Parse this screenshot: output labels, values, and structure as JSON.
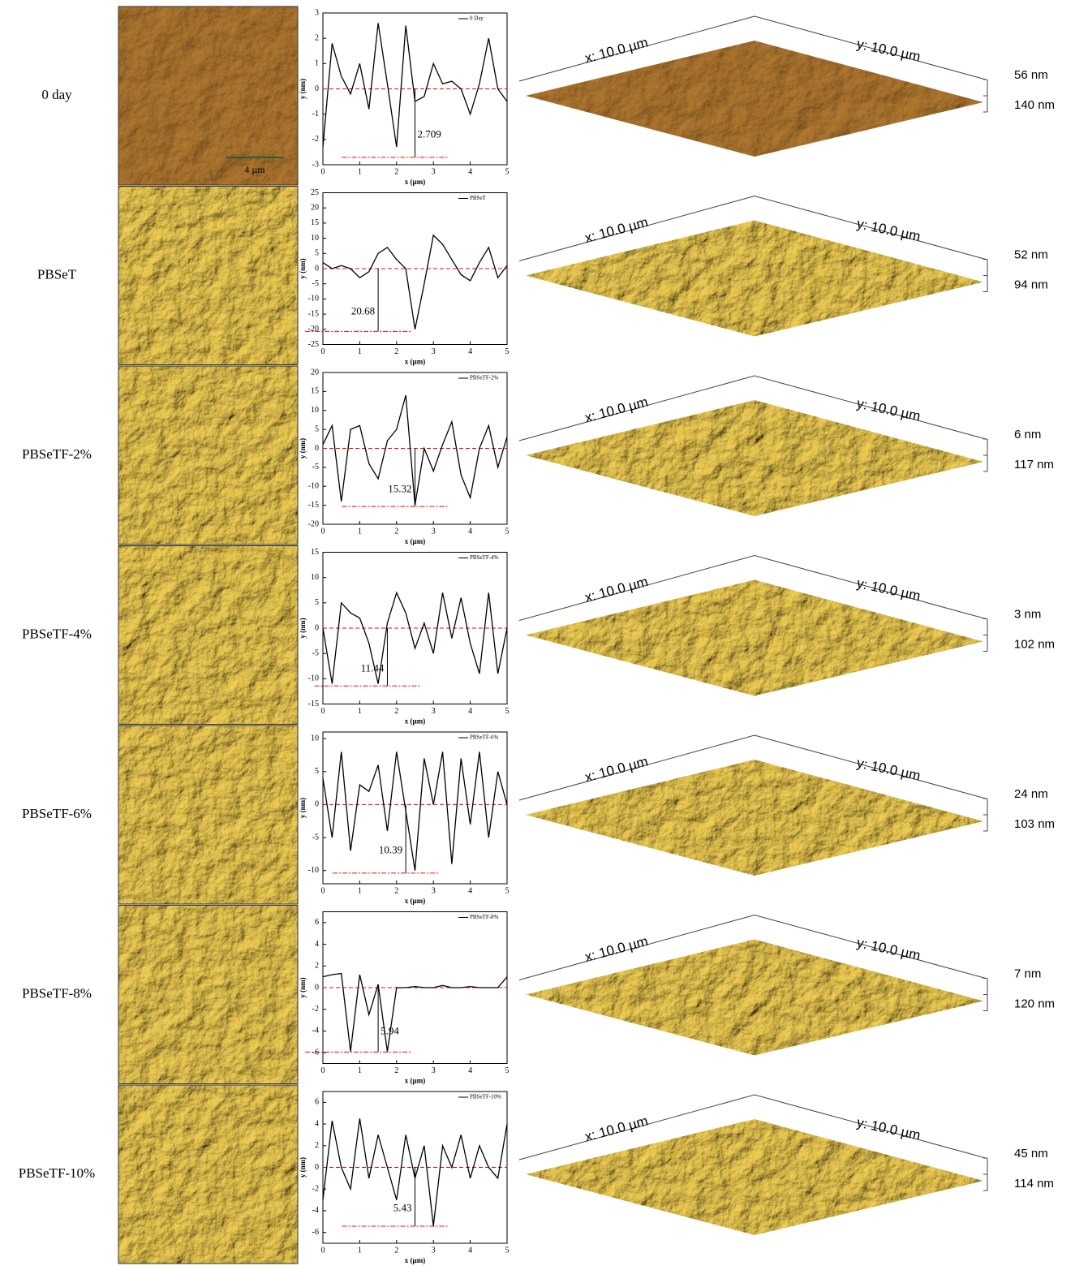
{
  "scale_bar": "4 µm",
  "rows": [
    {
      "label": "0 day",
      "surface": {
        "x_label": "x: 10.0 µm",
        "y_label": "y: 10.0 µm",
        "top": "56 nm",
        "bottom": "140 nm"
      }
    },
    {
      "label": "PBSeT",
      "surface": {
        "x_label": "x: 10.0 µm",
        "y_label": "y: 10.0 µm",
        "top": "52 nm",
        "bottom": "94 nm"
      }
    },
    {
      "label": "PBSeTF-2%",
      "surface": {
        "x_label": "x: 10.0 µm",
        "y_label": "y: 10.0 µm",
        "top": "6 nm",
        "bottom": "117 nm"
      }
    },
    {
      "label": "PBSeTF-4%",
      "surface": {
        "x_label": "x: 10.0 µm",
        "y_label": "y: 10.0 µm",
        "top": "3 nm",
        "bottom": "102 nm"
      }
    },
    {
      "label": "PBSeTF-6%",
      "surface": {
        "x_label": "x: 10.0 µm",
        "y_label": "y: 10.0 µm",
        "top": "24 nm",
        "bottom": "103 nm"
      }
    },
    {
      "label": "PBSeTF-8%",
      "surface": {
        "x_label": "x: 10.0 µm",
        "y_label": "y: 10.0 µm",
        "top": "7 nm",
        "bottom": "120 nm"
      }
    },
    {
      "label": "PBSeTF-10%",
      "surface": {
        "x_label": "x: 10.0 µm",
        "y_label": "y: 10.0 µm",
        "top": "45 nm",
        "bottom": "114 nm"
      }
    }
  ],
  "chart_data": [
    {
      "type": "line",
      "x": [
        0,
        0.25,
        0.5,
        0.75,
        1,
        1.25,
        1.5,
        1.75,
        2,
        2.25,
        2.5,
        2.75,
        3,
        3.25,
        3.5,
        3.75,
        4,
        4.25,
        4.5,
        4.75,
        5
      ],
      "series": [
        {
          "name": "0 Day",
          "color": "#000000",
          "values": [
            -2.3,
            1.8,
            0.5,
            -0.2,
            1.0,
            -0.8,
            2.6,
            0.2,
            -2.3,
            2.5,
            -0.5,
            -0.3,
            1.0,
            0.2,
            0.3,
            0.0,
            -1.0,
            0.2,
            2.0,
            0.0,
            -0.5
          ]
        }
      ],
      "xlim": [
        0,
        5
      ],
      "xticks": [
        0,
        1,
        2,
        3,
        4,
        5
      ],
      "ylim": [
        -3,
        3
      ],
      "yticks": [
        -3,
        -2,
        -1,
        0,
        1,
        2,
        3
      ],
      "x_label": "x (µm)",
      "y_label": "y (nm)",
      "annotation": 2.709,
      "reference_color": "#ff0000"
    },
    {
      "type": "line",
      "x": [
        0,
        0.25,
        0.5,
        0.75,
        1,
        1.25,
        1.5,
        1.75,
        2,
        2.25,
        2.5,
        2.75,
        3,
        3.25,
        3.5,
        3.75,
        4,
        4.25,
        4.5,
        4.75,
        5
      ],
      "series": [
        {
          "name": "PBSeT",
          "color": "#000000",
          "values": [
            2,
            0,
            1,
            0,
            -3,
            -1,
            5,
            7,
            3,
            0,
            -20,
            -5,
            11,
            8,
            3,
            -2,
            -4,
            2,
            7,
            -3,
            1
          ]
        }
      ],
      "xlim": [
        0,
        5
      ],
      "xticks": [
        0,
        1,
        2,
        3,
        4,
        5
      ],
      "ylim": [
        -25,
        25
      ],
      "yticks": [
        -25,
        -20,
        -15,
        -10,
        -5,
        0,
        5,
        10,
        15,
        20,
        25
      ],
      "x_label": "x (µm)",
      "y_label": "y (nm)",
      "annotation": 20.68,
      "reference_color": "#ff0000"
    },
    {
      "type": "line",
      "x": [
        0,
        0.25,
        0.5,
        0.75,
        1,
        1.25,
        1.5,
        1.75,
        2,
        2.25,
        2.5,
        2.75,
        3,
        3.25,
        3.5,
        3.75,
        4,
        4.25,
        4.5,
        4.75,
        5
      ],
      "series": [
        {
          "name": "PBSeTF-2%",
          "color": "#000000",
          "values": [
            1,
            6,
            -14,
            5,
            6,
            -4,
            -8,
            2,
            5,
            14,
            -15,
            0,
            -6,
            1,
            7,
            -7,
            -13,
            0,
            6,
            -5,
            3
          ]
        }
      ],
      "xlim": [
        0,
        5
      ],
      "xticks": [
        0,
        1,
        2,
        3,
        4,
        5
      ],
      "ylim": [
        -20,
        20
      ],
      "yticks": [
        -20,
        -15,
        -10,
        -5,
        0,
        5,
        10,
        15,
        20
      ],
      "x_label": "x (µm)",
      "y_label": "y (nm)",
      "annotation": 15.32,
      "reference_color": "#ff0000"
    },
    {
      "type": "line",
      "x": [
        0,
        0.25,
        0.5,
        0.75,
        1,
        1.25,
        1.5,
        1.75,
        2,
        2.25,
        2.5,
        2.75,
        3,
        3.25,
        3.5,
        3.75,
        4,
        4.25,
        4.5,
        4.75,
        5
      ],
      "series": [
        {
          "name": "PBSeTF-4%",
          "color": "#000000",
          "values": [
            0,
            -11,
            5,
            3,
            2,
            -3,
            -11,
            1,
            7,
            3,
            -4,
            1,
            -5,
            7,
            -2,
            6,
            -3,
            -9,
            7,
            -9,
            0
          ]
        }
      ],
      "xlim": [
        0,
        5
      ],
      "xticks": [
        0,
        1,
        2,
        3,
        4,
        5
      ],
      "ylim": [
        -15,
        15
      ],
      "yticks": [
        -15,
        -10,
        -5,
        0,
        5,
        10,
        15
      ],
      "x_label": "x (µm)",
      "y_label": "y (nm)",
      "annotation": 11.44,
      "reference_color": "#ff0000"
    },
    {
      "type": "line",
      "x": [
        0,
        0.25,
        0.5,
        0.75,
        1,
        1.25,
        1.5,
        1.75,
        2,
        2.25,
        2.5,
        2.75,
        3,
        3.25,
        3.5,
        3.75,
        4,
        4.25,
        4.5,
        4.75,
        5
      ],
      "series": [
        {
          "name": "PBSeTF-6%",
          "color": "#000000",
          "values": [
            4,
            -5,
            8,
            -7,
            3,
            2,
            6,
            -4,
            8,
            -1,
            -10,
            7,
            0,
            8,
            -9,
            7,
            -3,
            8,
            -5,
            5,
            0
          ]
        }
      ],
      "xlim": [
        0,
        5
      ],
      "xticks": [
        0,
        1,
        2,
        3,
        4,
        5
      ],
      "ylim": [
        -12,
        11
      ],
      "yticks": [
        -10,
        -5,
        0,
        5,
        10
      ],
      "x_label": "x (µm)",
      "y_label": "y (nm)",
      "annotation": 10.39,
      "reference_color": "#ff0000"
    },
    {
      "type": "line",
      "x": [
        0,
        0.25,
        0.5,
        0.75,
        1,
        1.25,
        1.5,
        1.75,
        2,
        2.25,
        2.5,
        2.75,
        3,
        3.25,
        3.5,
        3.75,
        4,
        4.25,
        4.5,
        4.75,
        5
      ],
      "series": [
        {
          "name": "PBSeTF-8%",
          "color": "#000000",
          "values": [
            1,
            1.2,
            1.3,
            -5.9,
            1.2,
            -2.5,
            0.3,
            -5.9,
            0,
            0,
            0.1,
            0,
            0,
            0.2,
            0,
            0,
            0.1,
            0,
            0,
            0,
            1
          ]
        }
      ],
      "xlim": [
        0,
        5
      ],
      "xticks": [
        0,
        1,
        2,
        3,
        4,
        5
      ],
      "ylim": [
        -7,
        7
      ],
      "yticks": [
        -6,
        -4,
        -2,
        0,
        2,
        4,
        6
      ],
      "x_label": "x (µm)",
      "y_label": "y (nm)",
      "annotation": 5.94,
      "reference_color": "#ff0000"
    },
    {
      "type": "line",
      "x": [
        0,
        0.25,
        0.5,
        0.75,
        1,
        1.25,
        1.5,
        1.75,
        2,
        2.25,
        2.5,
        2.75,
        3,
        3.25,
        3.5,
        3.75,
        4,
        4.25,
        4.5,
        4.75,
        5
      ],
      "series": [
        {
          "name": "PBSeTF-10%",
          "color": "#000000",
          "values": [
            -3,
            4.3,
            0,
            -2,
            4.5,
            -1,
            3,
            0,
            -3,
            3,
            -1,
            2,
            -5.4,
            2,
            0,
            3,
            -1,
            2,
            0,
            -1,
            4
          ]
        }
      ],
      "xlim": [
        0,
        5
      ],
      "xticks": [
        0,
        1,
        2,
        3,
        4,
        5
      ],
      "ylim": [
        -7,
        7
      ],
      "yticks": [
        -6,
        -4,
        -2,
        0,
        2,
        4,
        6
      ],
      "x_label": "x (µm)",
      "y_label": "y (nm)",
      "annotation": 5.43,
      "reference_color": "#ff0000"
    }
  ]
}
